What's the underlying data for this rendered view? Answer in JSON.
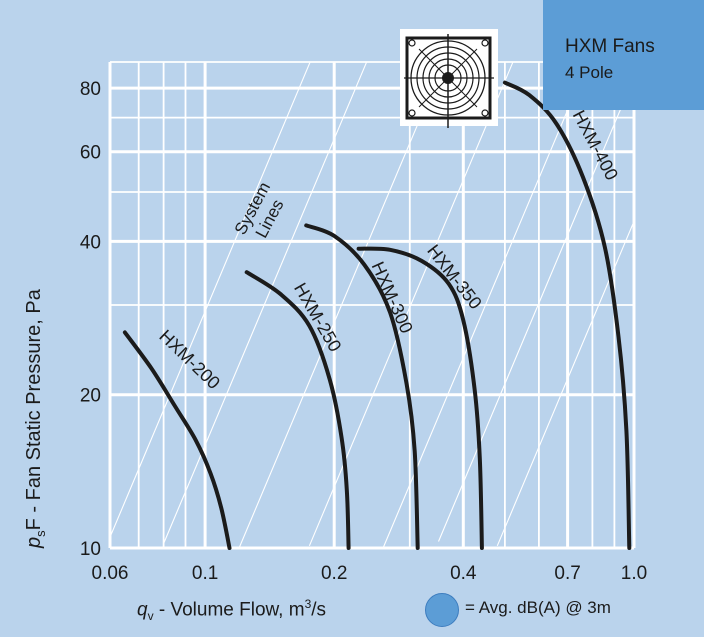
{
  "header": {
    "title_line1": "HXM Fans",
    "title_line2": "4 Pole"
  },
  "legend": {
    "text": "= Avg. dB(A) @ 3m",
    "marker_color": "#5c9dd6"
  },
  "fan_icon": "fan-grille-icon",
  "chart_data": {
    "type": "line",
    "x_scale": "log",
    "y_scale": "log",
    "xlim": [
      0.06,
      1.0
    ],
    "ylim": [
      10,
      90
    ],
    "xlabel_var": "q",
    "xlabel_sub": "v",
    "xlabel_text": " - Volume Flow, m",
    "xlabel_sup": "3",
    "xlabel_unit": "/s",
    "ylabel_var": "p",
    "ylabel_sub": "s",
    "ylabel_text": "F - Fan Static Pressure, Pa",
    "x_ticks": [
      {
        "value": 0.06,
        "label": "0.06"
      },
      {
        "value": 0.1,
        "label": "0.1"
      },
      {
        "value": 0.2,
        "label": "0.2"
      },
      {
        "value": 0.4,
        "label": "0.4"
      },
      {
        "value": 0.7,
        "label": "0.7"
      },
      {
        "value": 1.0,
        "label": "1.0"
      }
    ],
    "y_ticks": [
      {
        "value": 10,
        "label": "10"
      },
      {
        "value": 20,
        "label": "20"
      },
      {
        "value": 40,
        "label": "40"
      },
      {
        "value": 60,
        "label": "60"
      },
      {
        "value": 80,
        "label": "80"
      }
    ],
    "x_grid": [
      0.06,
      0.07,
      0.08,
      0.09,
      0.1,
      0.2,
      0.3,
      0.4,
      0.5,
      0.6,
      0.7,
      0.8,
      0.9,
      1.0
    ],
    "y_grid": [
      10,
      20,
      30,
      40,
      50,
      60,
      70,
      80,
      90
    ],
    "grid": true,
    "system_lines_label": [
      "System",
      "Lines"
    ],
    "system_lines": [
      [
        [
          0.06,
          10.5
        ],
        [
          0.212,
          131
        ]
      ],
      [
        [
          0.08,
          10.2
        ],
        [
          0.3,
          143
        ]
      ],
      [
        [
          0.12,
          10.0
        ],
        [
          0.44,
          134
        ]
      ],
      [
        [
          0.175,
          10.1
        ],
        [
          0.62,
          127
        ]
      ],
      [
        [
          0.26,
          10.0
        ],
        [
          0.96,
          136
        ]
      ],
      [
        [
          0.35,
          10.3
        ],
        [
          1.0,
          84
        ]
      ],
      [
        [
          0.48,
          10.1
        ],
        [
          1.0,
          43.8
        ]
      ]
    ],
    "series": [
      {
        "name": "HXM-200",
        "label_at": [
          0.09,
          23
        ],
        "label_rot": 44,
        "points": [
          [
            0.065,
            26.5
          ],
          [
            0.075,
            22.5
          ],
          [
            0.085,
            19
          ],
          [
            0.095,
            16.3
          ],
          [
            0.103,
            14
          ],
          [
            0.109,
            12
          ],
          [
            0.114,
            10
          ]
        ]
      },
      {
        "name": "HXM-250",
        "label_at": [
          0.178,
          28
        ],
        "label_rot": 60,
        "points": [
          [
            0.125,
            34.8
          ],
          [
            0.15,
            31.5
          ],
          [
            0.175,
            27.3
          ],
          [
            0.195,
            21.5
          ],
          [
            0.208,
            16.5
          ],
          [
            0.214,
            13
          ],
          [
            0.216,
            10
          ]
        ]
      },
      {
        "name": "HXM-300",
        "label_at": [
          0.265,
          30.7
        ],
        "label_rot": 66,
        "points": [
          [
            0.172,
            43
          ],
          [
            0.2,
            41
          ],
          [
            0.235,
            36
          ],
          [
            0.27,
            29
          ],
          [
            0.295,
            21
          ],
          [
            0.308,
            15.5
          ],
          [
            0.313,
            10
          ]
        ]
      },
      {
        "name": "HXM-350",
        "label_at": [
          0.372,
          33.5
        ],
        "label_rot": 52,
        "points": [
          [
            0.228,
            38.7
          ],
          [
            0.27,
            38.5
          ],
          [
            0.32,
            36.6
          ],
          [
            0.37,
            33
          ],
          [
            0.4,
            28
          ],
          [
            0.425,
            20.5
          ],
          [
            0.437,
            15
          ],
          [
            0.442,
            10
          ]
        ]
      },
      {
        "name": "HXM-400",
        "label_at": [
          0.79,
          61
        ],
        "label_rot": 62,
        "points": [
          [
            0.5,
            82
          ],
          [
            0.57,
            77.5
          ],
          [
            0.66,
            68
          ],
          [
            0.76,
            53.5
          ],
          [
            0.855,
            39
          ],
          [
            0.92,
            26
          ],
          [
            0.96,
            17
          ],
          [
            0.975,
            10
          ]
        ]
      }
    ]
  }
}
